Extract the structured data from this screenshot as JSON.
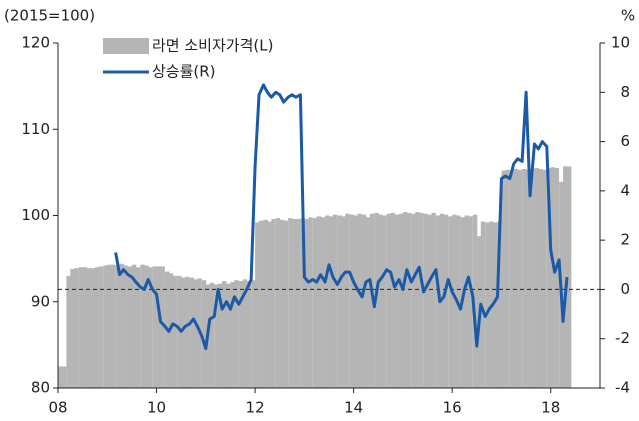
{
  "chart_data": {
    "type": "bar",
    "y_label": "(2015=100)",
    "y2_label": "%",
    "xlim": [
      2008,
      2019
    ],
    "ylim": [
      80,
      120
    ],
    "y2lim": [
      -4,
      10
    ],
    "xticks": [
      {
        "value": 2008,
        "label": "08"
      },
      {
        "value": 2010,
        "label": "10"
      },
      {
        "value": 2012,
        "label": "12"
      },
      {
        "value": 2014,
        "label": "14"
      },
      {
        "value": 2016,
        "label": "16"
      },
      {
        "value": 2018,
        "label": "18"
      }
    ],
    "yticks": [
      80,
      90,
      100,
      110,
      120
    ],
    "y2ticks": [
      -4,
      -2,
      0,
      2,
      4,
      6,
      8,
      10
    ],
    "hline": {
      "value": 0,
      "axis": "y2",
      "style": "dashed"
    },
    "legend": "top-left",
    "series": [
      {
        "name": "라면 소비자가격(L)",
        "type": "bar",
        "color": "#b5b5b5",
        "x": [
          2008.0,
          2008.08,
          2008.17,
          2008.25,
          2008.33,
          2008.42,
          2008.5,
          2008.58,
          2008.67,
          2008.75,
          2008.83,
          2008.92,
          2009.0,
          2009.08,
          2009.17,
          2009.25,
          2009.33,
          2009.42,
          2009.5,
          2009.58,
          2009.67,
          2009.75,
          2009.83,
          2009.92,
          2010.0,
          2010.08,
          2010.17,
          2010.25,
          2010.33,
          2010.42,
          2010.5,
          2010.58,
          2010.67,
          2010.75,
          2010.83,
          2010.92,
          2011.0,
          2011.08,
          2011.17,
          2011.25,
          2011.33,
          2011.42,
          2011.5,
          2011.58,
          2011.67,
          2011.75,
          2011.83,
          2011.92,
          2012.0,
          2012.08,
          2012.17,
          2012.25,
          2012.33,
          2012.42,
          2012.5,
          2012.58,
          2012.67,
          2012.75,
          2012.83,
          2012.92,
          2013.0,
          2013.08,
          2013.17,
          2013.25,
          2013.33,
          2013.42,
          2013.5,
          2013.58,
          2013.67,
          2013.75,
          2013.83,
          2013.92,
          2014.0,
          2014.08,
          2014.17,
          2014.25,
          2014.33,
          2014.42,
          2014.5,
          2014.58,
          2014.67,
          2014.75,
          2014.83,
          2014.92,
          2015.0,
          2015.08,
          2015.17,
          2015.25,
          2015.33,
          2015.42,
          2015.5,
          2015.58,
          2015.67,
          2015.75,
          2015.83,
          2015.92,
          2016.0,
          2016.08,
          2016.17,
          2016.25,
          2016.33,
          2016.42,
          2016.5,
          2016.58,
          2016.67,
          2016.75,
          2016.83,
          2016.92,
          2017.0,
          2017.08,
          2017.17,
          2017.25,
          2017.33,
          2017.42,
          2017.5,
          2017.58,
          2017.67,
          2017.75,
          2017.83,
          2017.92,
          2018.0,
          2018.08,
          2018.17,
          2018.25,
          2018.33
        ],
        "values": [
          82.5,
          82.5,
          93,
          93.8,
          93.9,
          94,
          94,
          93.9,
          93.9,
          94,
          94.1,
          94.2,
          94.3,
          94.3,
          94.2,
          94.4,
          94.2,
          94.1,
          94.3,
          94.0,
          94.3,
          94.2,
          94.0,
          94.1,
          94.1,
          94.1,
          93.5,
          93.3,
          93.0,
          93.0,
          92.8,
          92.9,
          92.8,
          92.6,
          92.7,
          92.5,
          92.0,
          92.2,
          92.0,
          92.1,
          92.4,
          92.1,
          92.3,
          92.5,
          92.4,
          92.6,
          92.4,
          92.5,
          99.2,
          99.4,
          99.5,
          99.3,
          99.6,
          99.7,
          99.5,
          99.4,
          99.7,
          99.6,
          99.6,
          99.7,
          99.6,
          99.8,
          99.7,
          99.9,
          99.8,
          100.0,
          99.9,
          100.1,
          100.0,
          99.9,
          100.2,
          100.1,
          100.0,
          100.2,
          100.1,
          99.8,
          100.2,
          100.3,
          100.1,
          100.0,
          100.2,
          100.3,
          100.1,
          100.2,
          100.4,
          100.3,
          100.2,
          100.4,
          100.3,
          100.2,
          100.1,
          100.3,
          100.0,
          100.2,
          100.1,
          99.9,
          100.1,
          100.0,
          99.8,
          100.0,
          99.9,
          100.1,
          97.6,
          99.3,
          99.2,
          99.3,
          99.2,
          99.3,
          105.2,
          105.3,
          105.2,
          105.4,
          105.3,
          105.4,
          105.3,
          105.4,
          105.5,
          105.4,
          105.3,
          105.5,
          105.6,
          105.5,
          103.9,
          105.7,
          105.7
        ]
      },
      {
        "name": "상승률(R)",
        "type": "line",
        "axis": "y2",
        "color": "#1b5aa6",
        "x": [
          2009.17,
          2009.25,
          2009.33,
          2009.42,
          2009.5,
          2009.58,
          2009.67,
          2009.75,
          2009.83,
          2009.92,
          2010.0,
          2010.08,
          2010.17,
          2010.25,
          2010.33,
          2010.42,
          2010.5,
          2010.58,
          2010.67,
          2010.75,
          2010.83,
          2010.92,
          2011.0,
          2011.08,
          2011.17,
          2011.25,
          2011.33,
          2011.42,
          2011.5,
          2011.58,
          2011.67,
          2011.75,
          2011.83,
          2011.92,
          2012.0,
          2012.08,
          2012.17,
          2012.25,
          2012.33,
          2012.42,
          2012.5,
          2012.58,
          2012.67,
          2012.75,
          2012.83,
          2012.92,
          2013.0,
          2013.08,
          2013.17,
          2013.25,
          2013.33,
          2013.42,
          2013.5,
          2013.58,
          2013.67,
          2013.75,
          2013.83,
          2013.92,
          2014.0,
          2014.08,
          2014.17,
          2014.25,
          2014.33,
          2014.42,
          2014.5,
          2014.58,
          2014.67,
          2014.75,
          2014.83,
          2014.92,
          2015.0,
          2015.08,
          2015.17,
          2015.25,
          2015.33,
          2015.42,
          2015.5,
          2015.58,
          2015.67,
          2015.75,
          2015.83,
          2015.92,
          2016.0,
          2016.08,
          2016.17,
          2016.25,
          2016.33,
          2016.42,
          2016.5,
          2016.58,
          2016.67,
          2016.75,
          2016.83,
          2016.92,
          2017.0,
          2017.08,
          2017.17,
          2017.25,
          2017.33,
          2017.42,
          2017.5,
          2017.58,
          2017.67,
          2017.75,
          2017.83,
          2017.92,
          2018.0,
          2018.08,
          2018.17,
          2018.25,
          2018.33
        ],
        "values": [
          1.5,
          0.6,
          0.8,
          0.6,
          0.5,
          0.3,
          0.1,
          0.0,
          0.4,
          0.0,
          -0.2,
          -1.3,
          -1.5,
          -1.7,
          -1.4,
          -1.5,
          -1.7,
          -1.5,
          -1.4,
          -1.2,
          -1.5,
          -1.9,
          -2.4,
          -1.2,
          -1.1,
          0.0,
          -0.8,
          -0.5,
          -0.8,
          -0.3,
          -0.6,
          -0.3,
          0.0,
          0.4,
          5.0,
          7.9,
          8.3,
          8.0,
          7.8,
          8.0,
          7.9,
          7.6,
          7.8,
          7.9,
          7.8,
          7.9,
          0.5,
          0.3,
          0.4,
          0.3,
          0.6,
          0.3,
          1.0,
          0.5,
          0.2,
          0.5,
          0.7,
          0.7,
          0.3,
          0.0,
          -0.3,
          0.3,
          0.4,
          -0.7,
          0.3,
          0.5,
          0.8,
          0.7,
          0.1,
          0.4,
          0.0,
          0.8,
          0.3,
          0.6,
          0.9,
          -0.1,
          0.2,
          0.5,
          0.8,
          -0.5,
          -0.3,
          0.4,
          -0.1,
          -0.4,
          -0.8,
          0.0,
          0.5,
          -0.3,
          -2.3,
          -0.6,
          -1.1,
          -0.8,
          -0.6,
          -0.3,
          4.5,
          4.6,
          4.5,
          5.1,
          5.3,
          5.2,
          8.0,
          3.8,
          5.9,
          5.7,
          6.0,
          5.8,
          1.6,
          0.7,
          1.2,
          -1.3,
          0.5
        ]
      }
    ]
  }
}
